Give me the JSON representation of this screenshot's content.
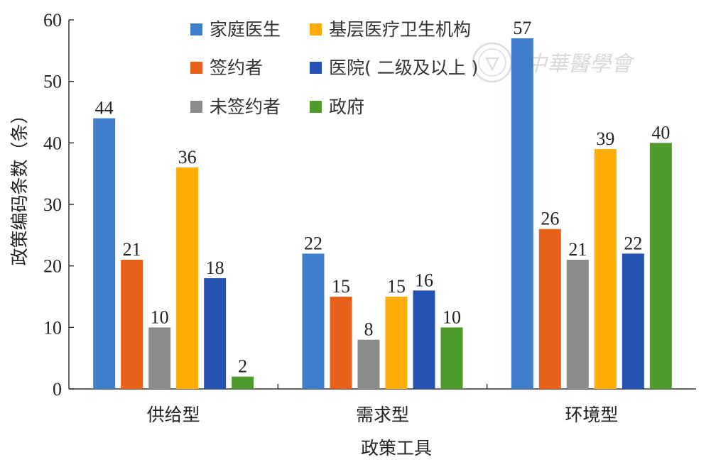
{
  "chart_data": {
    "type": "bar",
    "title": "",
    "xlabel": "政策工具",
    "ylabel": "政策编码条数（条）",
    "ylim": [
      0,
      60
    ],
    "yticks": [
      "0",
      "10",
      "20",
      "30",
      "40",
      "50",
      "60"
    ],
    "categories": [
      "供给型",
      "需求型",
      "环境型"
    ],
    "legend_position": "top",
    "grid": false,
    "series": [
      {
        "name": "家庭医生",
        "color": "#3f7fcb",
        "values": [
          44,
          22,
          57
        ]
      },
      {
        "name": "签约者",
        "color": "#e8611a",
        "values": [
          21,
          15,
          26
        ]
      },
      {
        "name": "未签约者",
        "color": "#8c8c8c",
        "values": [
          10,
          8,
          21
        ]
      },
      {
        "name": "基层医疗卫生机构",
        "color": "#fcac04",
        "values": [
          36,
          15,
          39
        ]
      },
      {
        "name": "医院( 二级及以上 )",
        "color": "#2453b4",
        "values": [
          18,
          16,
          22
        ]
      },
      {
        "name": "政府",
        "color": "#4e9a2b",
        "values": [
          2,
          10,
          40
        ]
      }
    ],
    "bar_presence": [
      [
        true,
        true,
        true
      ],
      [
        true,
        true,
        true
      ],
      [
        true,
        true,
        true
      ],
      [
        true,
        true,
        true
      ],
      [
        true,
        true,
        true
      ],
      [
        true,
        true,
        true
      ]
    ]
  },
  "watermark": {
    "text": "中華醫學會",
    "icon": "seal-icon"
  }
}
